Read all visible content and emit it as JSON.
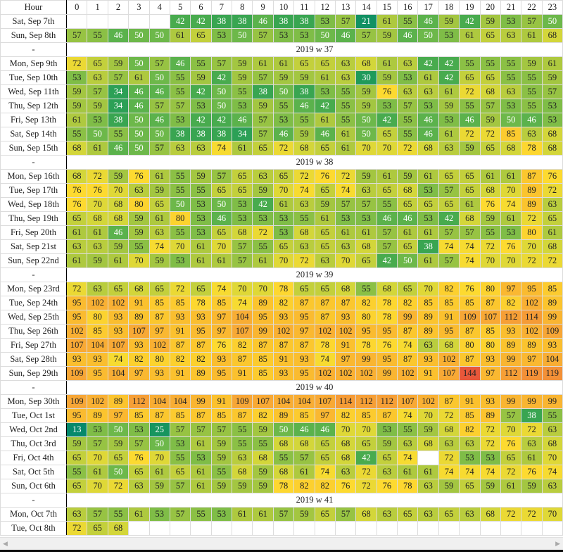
{
  "header": {
    "label": "Hour"
  },
  "colors": {
    "stops": [
      [
        13,
        "#05896b"
      ],
      [
        30,
        "#1f9a5a"
      ],
      [
        40,
        "#3fa84f"
      ],
      [
        50,
        "#6db84a"
      ],
      [
        60,
        "#a9c740"
      ],
      [
        68,
        "#d3d63a"
      ],
      [
        75,
        "#fddc30"
      ],
      [
        90,
        "#fbc22e"
      ],
      [
        110,
        "#f7a436"
      ],
      [
        144,
        "#e8573a"
      ]
    ],
    "white_text_max": 50
  },
  "chart_data": {
    "type": "heatmap",
    "x": [
      0,
      1,
      2,
      3,
      4,
      5,
      6,
      7,
      8,
      9,
      10,
      11,
      12,
      13,
      14,
      15,
      16,
      17,
      18,
      19,
      20,
      21,
      22,
      23
    ],
    "xlabel": "Hour",
    "rows": [
      {
        "type": "day",
        "label": "Sat, Sep 7th",
        "values": [
          null,
          null,
          null,
          null,
          null,
          42,
          42,
          38,
          38,
          46,
          38,
          38,
          53,
          57,
          21,
          61,
          55,
          46,
          59,
          42,
          59,
          53,
          57,
          50
        ]
      },
      {
        "type": "day",
        "label": "Sun, Sep 8th",
        "values": [
          57,
          55,
          46,
          50,
          50,
          61,
          65,
          53,
          50,
          57,
          53,
          53,
          50,
          46,
          57,
          59,
          46,
          50,
          53,
          61,
          65,
          63,
          61,
          68
        ]
      },
      {
        "type": "week",
        "label": "-",
        "title": "2019 w 37"
      },
      {
        "type": "day",
        "label": "Mon, Sep 9th",
        "values": [
          72,
          65,
          59,
          50,
          57,
          46,
          55,
          57,
          59,
          61,
          61,
          65,
          65,
          63,
          68,
          61,
          63,
          42,
          42,
          55,
          55,
          55,
          59,
          61
        ]
      },
      {
        "type": "day",
        "label": "Tue, Sep 10th",
        "values": [
          53,
          63,
          57,
          61,
          50,
          55,
          59,
          42,
          59,
          57,
          59,
          59,
          61,
          63,
          30,
          59,
          53,
          61,
          42,
          65,
          65,
          55,
          55,
          59
        ]
      },
      {
        "type": "day",
        "label": "Wed, Sep 11th",
        "values": [
          59,
          57,
          34,
          46,
          46,
          55,
          42,
          50,
          55,
          38,
          50,
          38,
          53,
          55,
          59,
          76,
          63,
          63,
          61,
          72,
          68,
          63,
          55,
          57
        ]
      },
      {
        "type": "day",
        "label": "Thu, Sep 12th",
        "values": [
          59,
          59,
          34,
          46,
          57,
          57,
          53,
          50,
          53,
          59,
          55,
          46,
          42,
          55,
          59,
          53,
          57,
          53,
          59,
          55,
          57,
          53,
          55,
          53
        ]
      },
      {
        "type": "day",
        "label": "Fri, Sep 13th",
        "values": [
          61,
          53,
          38,
          50,
          46,
          53,
          42,
          42,
          46,
          57,
          53,
          55,
          61,
          55,
          50,
          42,
          55,
          46,
          53,
          46,
          59,
          50,
          46,
          53
        ]
      },
      {
        "type": "day",
        "label": "Sat, Sep 14th",
        "values": [
          55,
          50,
          55,
          50,
          50,
          38,
          38,
          38,
          34,
          57,
          46,
          59,
          46,
          61,
          50,
          65,
          55,
          46,
          61,
          72,
          72,
          85,
          63,
          68
        ]
      },
      {
        "type": "day",
        "label": "Sun, Sep 15th",
        "values": [
          68,
          61,
          46,
          50,
          57,
          63,
          63,
          74,
          61,
          65,
          72,
          68,
          65,
          61,
          70,
          70,
          72,
          68,
          63,
          59,
          65,
          68,
          78,
          68
        ]
      },
      {
        "type": "week",
        "label": "-",
        "title": "2019 w 38"
      },
      {
        "type": "day",
        "label": "Mon, Sep 16th",
        "values": [
          68,
          72,
          59,
          76,
          61,
          55,
          59,
          57,
          65,
          63,
          65,
          72,
          76,
          72,
          59,
          61,
          59,
          61,
          65,
          65,
          61,
          61,
          87,
          76
        ]
      },
      {
        "type": "day",
        "label": "Tue, Sep 17th",
        "values": [
          76,
          76,
          70,
          63,
          59,
          55,
          55,
          65,
          65,
          59,
          70,
          74,
          65,
          74,
          63,
          65,
          68,
          53,
          57,
          65,
          68,
          70,
          89,
          72
        ]
      },
      {
        "type": "day",
        "label": "Wed, Sep 18th",
        "values": [
          76,
          70,
          68,
          80,
          65,
          50,
          53,
          50,
          53,
          42,
          61,
          63,
          59,
          57,
          57,
          55,
          65,
          65,
          65,
          61,
          76,
          74,
          89,
          63
        ]
      },
      {
        "type": "day",
        "label": "Thu, Sep 19th",
        "values": [
          65,
          68,
          68,
          59,
          61,
          80,
          53,
          46,
          53,
          53,
          53,
          55,
          61,
          53,
          53,
          46,
          46,
          53,
          42,
          68,
          59,
          61,
          72,
          65
        ]
      },
      {
        "type": "day",
        "label": "Fri, Sep 20th",
        "values": [
          61,
          61,
          46,
          59,
          63,
          55,
          53,
          65,
          68,
          72,
          53,
          68,
          65,
          61,
          61,
          57,
          61,
          61,
          57,
          57,
          55,
          53,
          80,
          61
        ]
      },
      {
        "type": "day",
        "label": "Sat, Sep 21st",
        "values": [
          63,
          63,
          59,
          55,
          74,
          70,
          61,
          70,
          57,
          55,
          65,
          63,
          65,
          63,
          68,
          57,
          65,
          38,
          74,
          74,
          72,
          76,
          70,
          68
        ]
      },
      {
        "type": "day",
        "label": "Sun, Sep 22nd",
        "values": [
          61,
          59,
          61,
          70,
          59,
          53,
          61,
          61,
          57,
          61,
          70,
          72,
          63,
          70,
          65,
          42,
          50,
          61,
          57,
          74,
          70,
          70,
          72,
          72
        ]
      },
      {
        "type": "week",
        "label": "-",
        "title": "2019 w 39"
      },
      {
        "type": "day",
        "label": "Mon, Sep 23rd",
        "values": [
          72,
          63,
          65,
          68,
          65,
          72,
          65,
          74,
          70,
          70,
          78,
          65,
          65,
          68,
          55,
          68,
          65,
          70,
          82,
          76,
          80,
          97,
          95,
          85
        ]
      },
      {
        "type": "day",
        "label": "Tue, Sep 24th",
        "values": [
          95,
          102,
          102,
          91,
          85,
          85,
          78,
          85,
          74,
          89,
          82,
          87,
          87,
          87,
          82,
          78,
          82,
          85,
          85,
          85,
          87,
          82,
          102,
          89
        ]
      },
      {
        "type": "day",
        "label": "Wed, Sep 25th",
        "values": [
          95,
          80,
          93,
          89,
          87,
          93,
          93,
          97,
          104,
          95,
          93,
          95,
          87,
          93,
          80,
          78,
          99,
          89,
          91,
          109,
          107,
          112,
          114,
          99
        ]
      },
      {
        "type": "day",
        "label": "Thu, Sep 26th",
        "values": [
          102,
          85,
          93,
          107,
          97,
          91,
          95,
          97,
          107,
          99,
          102,
          97,
          102,
          102,
          95,
          95,
          87,
          89,
          95,
          87,
          85,
          93,
          102,
          109
        ]
      },
      {
        "type": "day",
        "label": "Fri, Sep 27th",
        "values": [
          107,
          104,
          107,
          93,
          102,
          87,
          87,
          76,
          82,
          87,
          87,
          87,
          78,
          91,
          78,
          76,
          74,
          63,
          68,
          80,
          80,
          89,
          89,
          93
        ]
      },
      {
        "type": "day",
        "label": "Sat, Sep 28th",
        "values": [
          93,
          93,
          74,
          82,
          80,
          82,
          82,
          93,
          87,
          85,
          91,
          93,
          74,
          97,
          99,
          95,
          87,
          93,
          102,
          87,
          93,
          99,
          97,
          104
        ]
      },
      {
        "type": "day",
        "label": "Sun, Sep 29th",
        "values": [
          109,
          95,
          104,
          97,
          93,
          91,
          89,
          95,
          91,
          85,
          93,
          95,
          102,
          102,
          102,
          99,
          102,
          91,
          107,
          144,
          97,
          112,
          119,
          119
        ]
      },
      {
        "type": "week",
        "label": "-",
        "title": "2019 w 40"
      },
      {
        "type": "day",
        "label": "Mon, Sep 30th",
        "values": [
          109,
          102,
          89,
          112,
          104,
          104,
          99,
          91,
          109,
          107,
          104,
          104,
          107,
          114,
          112,
          112,
          107,
          102,
          87,
          91,
          93,
          99,
          99,
          99
        ]
      },
      {
        "type": "day",
        "label": "Tue, Oct 1st",
        "values": [
          95,
          89,
          97,
          85,
          87,
          85,
          87,
          85,
          87,
          82,
          89,
          85,
          97,
          82,
          85,
          87,
          74,
          70,
          72,
          85,
          89,
          57,
          38,
          55
        ]
      },
      {
        "type": "day",
        "label": "Wed, Oct 2nd",
        "values": [
          13,
          53,
          50,
          53,
          25,
          57,
          57,
          57,
          55,
          59,
          50,
          46,
          46,
          70,
          70,
          53,
          55,
          59,
          68,
          82,
          72,
          70,
          72,
          63
        ]
      },
      {
        "type": "day",
        "label": "Thu, Oct 3rd",
        "values": [
          59,
          57,
          59,
          57,
          50,
          53,
          61,
          59,
          55,
          55,
          68,
          68,
          65,
          68,
          65,
          59,
          63,
          68,
          63,
          63,
          72,
          76,
          63,
          68
        ]
      },
      {
        "type": "day",
        "label": "Fri, Oct 4th",
        "values": [
          65,
          70,
          65,
          76,
          70,
          55,
          53,
          59,
          63,
          68,
          55,
          57,
          65,
          68,
          42,
          65,
          74,
          null,
          72,
          53,
          53,
          65,
          61,
          70
        ]
      },
      {
        "type": "day",
        "label": "Sat, Oct 5th",
        "values": [
          55,
          61,
          50,
          65,
          61,
          65,
          61,
          55,
          68,
          59,
          68,
          61,
          74,
          63,
          72,
          63,
          61,
          61,
          74,
          74,
          74,
          72,
          76,
          74
        ]
      },
      {
        "type": "day",
        "label": "Sun, Oct 6th",
        "values": [
          65,
          70,
          72,
          63,
          59,
          57,
          61,
          59,
          59,
          59,
          78,
          82,
          82,
          76,
          72,
          76,
          78,
          63,
          59,
          65,
          59,
          61,
          59,
          63
        ]
      },
      {
        "type": "week",
        "label": "-",
        "title": "2019 w 41"
      },
      {
        "type": "day",
        "label": "Mon, Oct 7th",
        "values": [
          63,
          57,
          55,
          61,
          53,
          57,
          55,
          53,
          61,
          61,
          57,
          59,
          65,
          57,
          68,
          63,
          65,
          63,
          65,
          63,
          68,
          72,
          72,
          70
        ]
      },
      {
        "type": "day",
        "label": "Tue, Oct 8th",
        "values": [
          72,
          65,
          68,
          null,
          null,
          null,
          null,
          null,
          null,
          null,
          null,
          null,
          null,
          null,
          null,
          null,
          null,
          null,
          null,
          null,
          null,
          null,
          null,
          null
        ]
      }
    ]
  }
}
